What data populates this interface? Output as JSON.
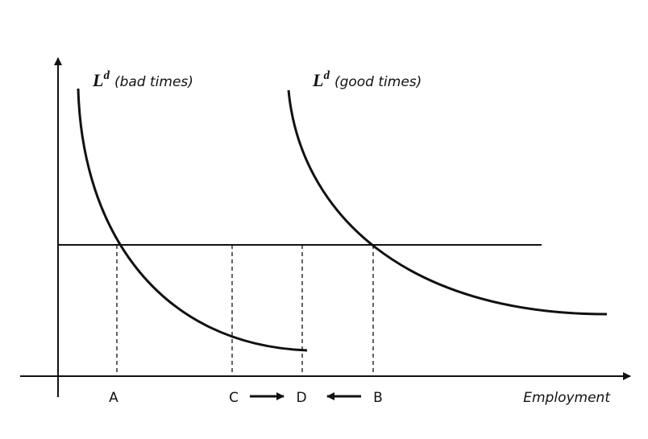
{
  "curves": [
    {
      "label": {
        "main": "L",
        "sup": "d",
        "note": "(bad times)"
      }
    },
    {
      "label": {
        "main": "L",
        "sup": "d",
        "note": "(good times)"
      }
    }
  ],
  "points": [
    "A",
    "C",
    "D",
    "B"
  ],
  "x_axis": {
    "label": "Employment"
  }
}
